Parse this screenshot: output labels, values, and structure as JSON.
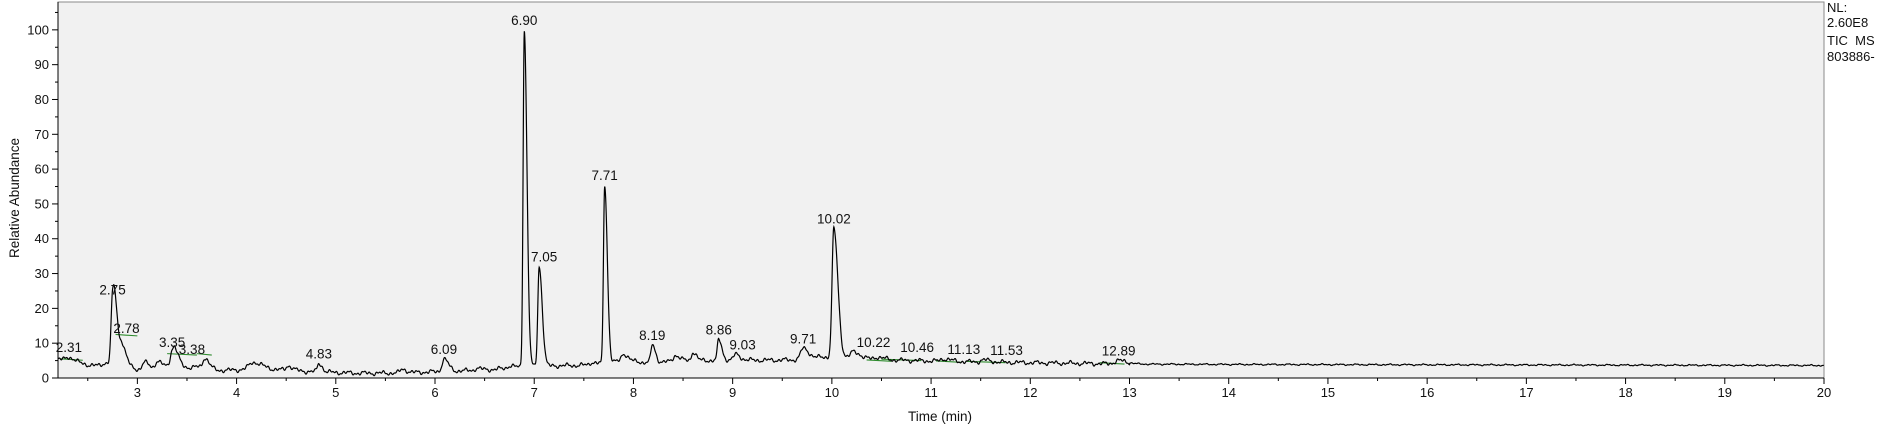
{
  "chart_data": {
    "type": "line",
    "xlabel": "Time (min)",
    "ylabel": "Relative Abundance",
    "xlim": [
      2.2,
      20
    ],
    "ylim": [
      0,
      108
    ],
    "x_ticks": [
      "3",
      "4",
      "5",
      "6",
      "7",
      "8",
      "9",
      "10",
      "11",
      "12",
      "13",
      "14",
      "15",
      "16",
      "17",
      "18",
      "19",
      "20"
    ],
    "y_ticks": [
      "0",
      "10",
      "20",
      "30",
      "40",
      "50",
      "60",
      "70",
      "80",
      "90",
      "100"
    ],
    "info": [
      "NL:",
      "2.60E8",
      "TIC  MS",
      "803886-"
    ],
    "colors": {
      "trace": "#000000",
      "background": "#f1f1f1",
      "baseline_marks": "#2e8b2e"
    },
    "baseline": [
      [
        2.2,
        5.5
      ],
      [
        2.3,
        4.8
      ],
      [
        2.4,
        4.2
      ],
      [
        2.5,
        3.8
      ],
      [
        2.6,
        3.5
      ],
      [
        2.7,
        4.5
      ],
      [
        2.9,
        3.0
      ],
      [
        3.0,
        2.5
      ],
      [
        3.2,
        2.8
      ],
      [
        3.3,
        3.2
      ],
      [
        3.5,
        3.0
      ],
      [
        3.6,
        3.2
      ],
      [
        3.8,
        2.2
      ],
      [
        4.0,
        2.3
      ],
      [
        4.1,
        2.6
      ],
      [
        4.3,
        2.5
      ],
      [
        4.5,
        2.3
      ],
      [
        4.7,
        1.9
      ],
      [
        5.0,
        1.6
      ],
      [
        5.2,
        1.4
      ],
      [
        5.5,
        1.4
      ],
      [
        5.8,
        1.6
      ],
      [
        6.0,
        1.8
      ],
      [
        6.2,
        2.0
      ],
      [
        6.4,
        2.2
      ],
      [
        6.6,
        2.5
      ],
      [
        6.8,
        3.0
      ],
      [
        7.2,
        3.5
      ],
      [
        7.4,
        3.6
      ],
      [
        7.6,
        3.8
      ],
      [
        7.9,
        5.0
      ],
      [
        8.1,
        4.5
      ],
      [
        8.3,
        4.6
      ],
      [
        8.5,
        5.0
      ],
      [
        8.7,
        5.0
      ],
      [
        9.0,
        5.2
      ],
      [
        9.3,
        5.1
      ],
      [
        9.6,
        5.2
      ],
      [
        9.9,
        6.0
      ],
      [
        10.2,
        6.0
      ],
      [
        10.4,
        5.4
      ],
      [
        10.7,
        5.1
      ],
      [
        11.0,
        4.9
      ],
      [
        11.5,
        4.6
      ],
      [
        12.0,
        4.4
      ],
      [
        12.5,
        4.2
      ],
      [
        13.0,
        4.0
      ],
      [
        14.0,
        3.9
      ],
      [
        16.0,
        3.8
      ],
      [
        18.0,
        3.7
      ],
      [
        20.0,
        3.6
      ]
    ],
    "peaks": [
      {
        "rt": 2.31,
        "height": 6.0,
        "width": 0.03,
        "label": "2.31",
        "label_x": 2.31
      },
      {
        "rt": 2.75,
        "height": 22.5,
        "width": 0.015,
        "label": "2.75",
        "label_x": 2.75
      },
      {
        "rt": 2.78,
        "height": 11.5,
        "width": 0.02,
        "label": "2.78",
        "label_x": 2.89
      },
      {
        "rt": 2.85,
        "height": 8.0,
        "width": 0.02,
        "label": null
      },
      {
        "rt": 3.07,
        "height": 4.5,
        "width": 0.02,
        "label": null
      },
      {
        "rt": 3.2,
        "height": 4.8,
        "width": 0.02,
        "label": null
      },
      {
        "rt": 3.35,
        "height": 7.5,
        "width": 0.02,
        "label": "3.35",
        "label_x": 3.35
      },
      {
        "rt": 3.38,
        "height": 5.5,
        "width": 0.02,
        "label": "3.38",
        "label_x": 3.55
      },
      {
        "rt": 3.68,
        "height": 5.8,
        "width": 0.02,
        "label": null
      },
      {
        "rt": 4.17,
        "height": 4.5,
        "width": 0.04,
        "label": null
      },
      {
        "rt": 4.52,
        "height": 3.5,
        "width": 0.02,
        "label": null
      },
      {
        "rt": 4.83,
        "height": 4.2,
        "width": 0.015,
        "label": "4.83",
        "label_x": 4.83
      },
      {
        "rt": 5.67,
        "height": 2.5,
        "width": 0.02,
        "label": null
      },
      {
        "rt": 6.09,
        "height": 5.5,
        "width": 0.02,
        "label": "6.09",
        "label_x": 6.09
      },
      {
        "rt": 6.42,
        "height": 2.8,
        "width": 0.02,
        "label": null
      },
      {
        "rt": 6.75,
        "height": 3.5,
        "width": 0.02,
        "label": null
      },
      {
        "rt": 6.9,
        "height": 100.0,
        "width": 0.012,
        "label": "6.90",
        "label_x": 6.9
      },
      {
        "rt": 7.05,
        "height": 32.0,
        "width": 0.014,
        "label": "7.05",
        "label_x": 7.1
      },
      {
        "rt": 7.58,
        "height": 4.5,
        "width": 0.02,
        "label": null
      },
      {
        "rt": 7.71,
        "height": 55.5,
        "width": 0.012,
        "label": "7.71",
        "label_x": 7.71
      },
      {
        "rt": 7.9,
        "height": 7.0,
        "width": 0.02,
        "label": null
      },
      {
        "rt": 8.19,
        "height": 9.5,
        "width": 0.014,
        "label": "8.19",
        "label_x": 8.19
      },
      {
        "rt": 8.42,
        "height": 6.5,
        "width": 0.02,
        "label": null
      },
      {
        "rt": 8.6,
        "height": 7.5,
        "width": 0.015,
        "label": null
      },
      {
        "rt": 8.86,
        "height": 11.0,
        "width": 0.014,
        "label": "8.86",
        "label_x": 8.86
      },
      {
        "rt": 9.03,
        "height": 6.8,
        "width": 0.02,
        "label": "9.03",
        "label_x": 9.1
      },
      {
        "rt": 9.71,
        "height": 8.5,
        "width": 0.025,
        "label": "9.71",
        "label_x": 9.71
      },
      {
        "rt": 10.02,
        "height": 43.0,
        "width": 0.018,
        "label": "10.02",
        "label_x": 10.02
      },
      {
        "rt": 10.22,
        "height": 7.5,
        "width": 0.03,
        "label": "10.22",
        "label_x": 10.42
      },
      {
        "rt": 10.46,
        "height": 6.0,
        "width": 0.03,
        "label": "10.46",
        "label_x": 10.86
      },
      {
        "rt": 11.13,
        "height": 5.5,
        "width": 0.03,
        "label": "11.13",
        "label_x": 11.33
      },
      {
        "rt": 11.53,
        "height": 5.2,
        "width": 0.03,
        "label": "11.53",
        "label_x": 11.76
      },
      {
        "rt": 12.89,
        "height": 5.0,
        "width": 0.04,
        "label": "12.89",
        "label_x": 12.89
      }
    ],
    "baseline_marks": [
      [
        2.22,
        2.45,
        5.5
      ],
      [
        2.78,
        3.0,
        12.5
      ],
      [
        3.3,
        3.6,
        7.0
      ],
      [
        3.6,
        3.75,
        7.0
      ],
      [
        10.35,
        10.6,
        5.2
      ],
      [
        10.5,
        10.9,
        5.4
      ],
      [
        11.05,
        11.3,
        4.9
      ],
      [
        11.35,
        11.75,
        4.8
      ],
      [
        12.7,
        12.95,
        4.4
      ]
    ]
  }
}
